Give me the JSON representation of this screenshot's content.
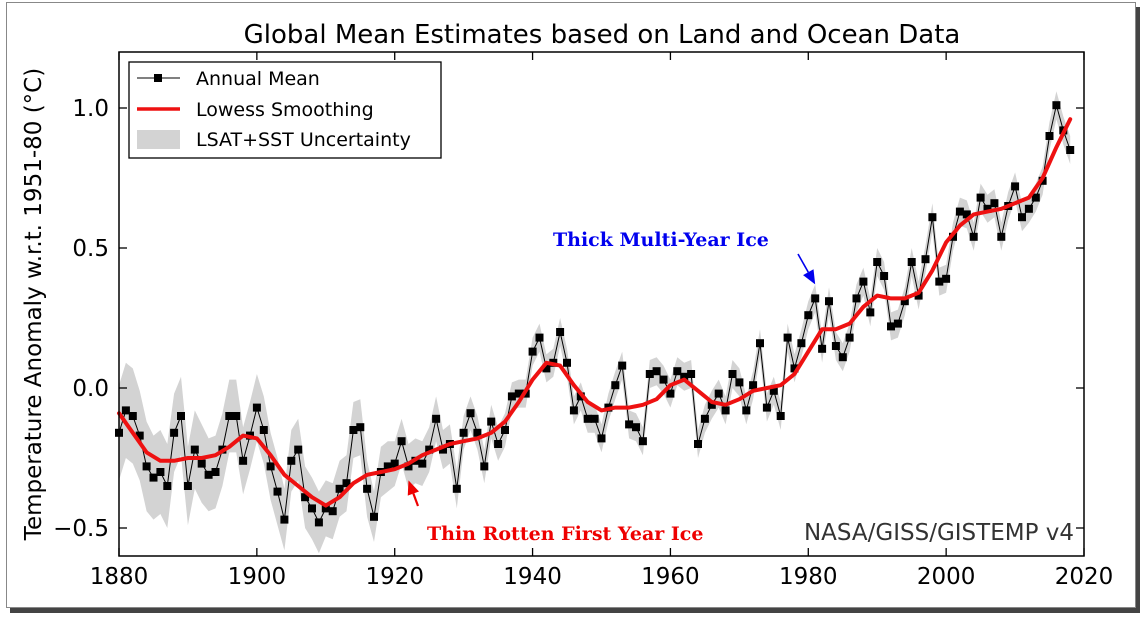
{
  "chart_data": {
    "type": "line",
    "title": "Global Mean Estimates based on Land and Ocean Data",
    "xlabel": "",
    "ylabel": "Temperature Anomaly w.r.t. 1951-80 (°C)",
    "xlim": [
      1880,
      2020
    ],
    "ylim": [
      -0.6,
      1.2
    ],
    "x_ticks": [
      "1880",
      "1900",
      "1920",
      "1940",
      "1960",
      "1980",
      "2000",
      "2020"
    ],
    "y_ticks": [
      "−0.5",
      "0.0",
      "0.5",
      "1.0"
    ],
    "y_tick_values": [
      -0.5,
      0.0,
      0.5,
      1.0
    ],
    "grid": false,
    "legend_position": "top-left",
    "credit": "NASA/GISS/GISTEMP v4",
    "years_start": 1880,
    "years_end": 2018,
    "series": [
      {
        "name": "Annual Mean",
        "color": "#000000",
        "marker": "square",
        "values": [
          -0.16,
          -0.08,
          -0.1,
          -0.17,
          -0.28,
          -0.32,
          -0.3,
          -0.35,
          -0.16,
          -0.1,
          -0.35,
          -0.22,
          -0.27,
          -0.31,
          -0.3,
          -0.22,
          -0.1,
          -0.1,
          -0.26,
          -0.17,
          -0.07,
          -0.15,
          -0.28,
          -0.37,
          -0.47,
          -0.26,
          -0.22,
          -0.39,
          -0.43,
          -0.48,
          -0.43,
          -0.44,
          -0.36,
          -0.34,
          -0.15,
          -0.14,
          -0.36,
          -0.46,
          -0.3,
          -0.28,
          -0.27,
          -0.19,
          -0.28,
          -0.26,
          -0.27,
          -0.22,
          -0.11,
          -0.22,
          -0.2,
          -0.36,
          -0.16,
          -0.09,
          -0.16,
          -0.28,
          -0.12,
          -0.2,
          -0.15,
          -0.03,
          -0.02,
          -0.02,
          0.13,
          0.18,
          0.07,
          0.09,
          0.2,
          0.09,
          -0.08,
          -0.03,
          -0.11,
          -0.11,
          -0.18,
          -0.07,
          0.01,
          0.08,
          -0.13,
          -0.14,
          -0.19,
          0.05,
          0.06,
          0.03,
          -0.02,
          0.06,
          0.04,
          0.05,
          -0.2,
          -0.11,
          -0.06,
          -0.02,
          -0.08,
          0.05,
          0.02,
          -0.08,
          0.01,
          0.16,
          -0.07,
          -0.01,
          -0.1,
          0.18,
          0.07,
          0.16,
          0.26,
          0.32,
          0.14,
          0.31,
          0.15,
          0.11,
          0.18,
          0.32,
          0.38,
          0.27,
          0.45,
          0.4,
          0.22,
          0.23,
          0.31,
          0.45,
          0.33,
          0.46,
          0.61,
          0.38,
          0.39,
          0.54,
          0.63,
          0.62,
          0.54,
          0.68,
          0.64,
          0.66,
          0.54,
          0.65,
          0.72,
          0.61,
          0.64,
          0.68,
          0.74,
          0.9,
          1.01,
          0.92,
          0.85
        ]
      },
      {
        "name": "Lowess Smoothing",
        "color": "#ee1111",
        "x": [
          1880,
          1882,
          1884,
          1886,
          1888,
          1890,
          1892,
          1894,
          1896,
          1898,
          1900,
          1902,
          1904,
          1906,
          1908,
          1910,
          1912,
          1914,
          1916,
          1918,
          1920,
          1922,
          1924,
          1926,
          1928,
          1930,
          1932,
          1934,
          1936,
          1938,
          1940,
          1942,
          1944,
          1946,
          1948,
          1950,
          1952,
          1954,
          1956,
          1958,
          1960,
          1962,
          1964,
          1966,
          1968,
          1970,
          1972,
          1974,
          1976,
          1978,
          1980,
          1982,
          1984,
          1986,
          1988,
          1990,
          1992,
          1994,
          1996,
          1998,
          2000,
          2002,
          2004,
          2006,
          2008,
          2010,
          2012,
          2014,
          2016,
          2018
        ],
        "values": [
          -0.09,
          -0.16,
          -0.23,
          -0.26,
          -0.26,
          -0.25,
          -0.25,
          -0.24,
          -0.21,
          -0.17,
          -0.18,
          -0.24,
          -0.31,
          -0.35,
          -0.39,
          -0.42,
          -0.39,
          -0.34,
          -0.31,
          -0.3,
          -0.29,
          -0.27,
          -0.24,
          -0.22,
          -0.2,
          -0.19,
          -0.18,
          -0.16,
          -0.12,
          -0.05,
          0.03,
          0.09,
          0.08,
          0.01,
          -0.05,
          -0.08,
          -0.07,
          -0.07,
          -0.06,
          -0.04,
          0.01,
          0.03,
          -0.01,
          -0.05,
          -0.06,
          -0.04,
          -0.01,
          0.0,
          0.01,
          0.05,
          0.13,
          0.21,
          0.21,
          0.23,
          0.29,
          0.33,
          0.32,
          0.32,
          0.34,
          0.42,
          0.52,
          0.58,
          0.62,
          0.63,
          0.64,
          0.66,
          0.68,
          0.75,
          0.86,
          0.96
        ]
      },
      {
        "name": "LSAT+SST Uncertainty",
        "color": "#d3d3d3",
        "band_halfwidth": [
          0.17,
          0.17,
          0.17,
          0.16,
          0.16,
          0.15,
          0.15,
          0.15,
          0.14,
          0.14,
          0.14,
          0.14,
          0.14,
          0.13,
          0.13,
          0.13,
          0.13,
          0.13,
          0.12,
          0.12,
          0.12,
          0.12,
          0.12,
          0.12,
          0.11,
          0.11,
          0.11,
          0.11,
          0.11,
          0.11,
          0.1,
          0.1,
          0.1,
          0.1,
          0.1,
          0.1,
          0.1,
          0.09,
          0.09,
          0.09,
          0.08,
          0.08,
          0.08,
          0.08,
          0.08,
          0.08,
          0.08,
          0.07,
          0.07,
          0.07,
          0.06,
          0.06,
          0.06,
          0.06,
          0.06,
          0.06,
          0.06,
          0.05,
          0.05,
          0.05,
          0.05,
          0.05,
          0.05,
          0.05,
          0.05,
          0.05,
          0.05,
          0.05,
          0.05,
          0.05,
          0.05,
          0.05,
          0.05,
          0.05,
          0.05,
          0.05,
          0.05,
          0.05,
          0.05,
          0.05,
          0.05,
          0.05,
          0.05,
          0.05,
          0.05,
          0.05,
          0.05,
          0.05,
          0.05,
          0.05,
          0.05,
          0.05,
          0.05,
          0.05,
          0.05,
          0.05,
          0.05,
          0.05,
          0.05,
          0.05,
          0.05,
          0.05,
          0.05,
          0.05,
          0.05,
          0.05,
          0.05,
          0.05,
          0.05,
          0.05,
          0.05,
          0.05,
          0.05,
          0.05,
          0.05,
          0.05,
          0.05,
          0.05,
          0.05,
          0.05,
          0.05,
          0.05,
          0.05,
          0.05,
          0.05,
          0.05,
          0.05,
          0.05,
          0.05,
          0.05,
          0.05,
          0.05,
          0.05,
          0.05,
          0.05,
          0.05,
          0.05,
          0.05,
          0.05
        ]
      }
    ],
    "annotations": [
      {
        "text": "Thick Multi-Year Ice",
        "color": "#0000ee",
        "arrow_to_year": 1981,
        "arrow_to_value": 0.37
      },
      {
        "text": "Thin Rotten First Year Ice",
        "color": "#ee0000",
        "arrow_to_year": 1922,
        "arrow_to_value": -0.33
      }
    ]
  }
}
